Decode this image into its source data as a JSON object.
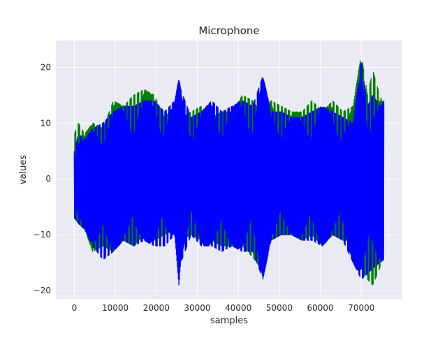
{
  "chart_data": {
    "type": "line",
    "title": "Microphone",
    "xlabel": "samples",
    "ylabel": "values",
    "xlim": [
      -4500,
      80000
    ],
    "ylim": [
      -21.5,
      24.8
    ],
    "x_ticks": [
      0,
      10000,
      20000,
      30000,
      40000,
      50000,
      60000,
      70000
    ],
    "x_tick_labels": [
      "0",
      "10000",
      "20000",
      "30000",
      "40000",
      "50000",
      "60000",
      "70000"
    ],
    "y_ticks": [
      -20,
      -10,
      0,
      10,
      20
    ],
    "y_tick_labels": [
      "−20",
      "−10",
      "0",
      "10",
      "20"
    ],
    "grid": true,
    "style": "seaborn-darkgrid",
    "background_color": "#EAEAF2",
    "series": [
      {
        "color": "#008000",
        "x": [
          0,
          1000,
          2500,
          4500,
          7000,
          9500,
          12000,
          14500,
          17000,
          19500,
          22000,
          24500,
          26000,
          28500,
          31000,
          33500,
          36000,
          38500,
          41000,
          43500,
          45500,
          48000,
          50500,
          53000,
          55500,
          58000,
          60500,
          63000,
          65500,
          68000,
          70000,
          71500,
          72800,
          74500,
          75500
        ],
        "y_max": [
          8,
          10,
          8,
          10,
          9,
          14,
          13,
          15,
          16,
          15,
          11,
          13,
          11,
          12,
          13,
          11,
          12,
          12,
          15,
          14,
          12,
          14,
          13,
          12,
          12,
          14,
          12,
          14,
          12,
          13,
          22.5,
          15,
          19.5,
          15,
          13
        ],
        "y_min": [
          -7,
          -8,
          -9,
          -13,
          -12,
          -13,
          -11,
          -12,
          -10,
          -11,
          -10,
          -9,
          -11,
          -10,
          -11,
          -11,
          -12,
          -12,
          -12,
          -14,
          -16,
          -11,
          -10,
          -10,
          -11,
          -10,
          -12,
          -10,
          -11,
          -11,
          -16,
          -18,
          -19,
          -16,
          -12
        ]
      },
      {
        "color": "#0000FF",
        "x": [
          0,
          1000,
          2500,
          4500,
          7000,
          9500,
          12000,
          14500,
          17000,
          19500,
          22000,
          24500,
          25500,
          26000,
          28500,
          31000,
          33500,
          36000,
          38500,
          41000,
          43500,
          46000,
          48000,
          50500,
          53000,
          55500,
          58000,
          60500,
          63000,
          65500,
          68000,
          70000,
          71500,
          72800,
          74500,
          75500
        ],
        "y_max": [
          5,
          8,
          7,
          9,
          10,
          12,
          13,
          13,
          14,
          14,
          12,
          14,
          18,
          16,
          11,
          12,
          14,
          12,
          13,
          14,
          13,
          18.5,
          12,
          12,
          11,
          11,
          12,
          13,
          12,
          11,
          10,
          21,
          13,
          15,
          13,
          14
        ],
        "y_min": [
          -7,
          -8,
          -9,
          -12,
          -14.5,
          -13,
          -11,
          -12,
          -11,
          -12,
          -12,
          -10,
          -19,
          -15,
          -10,
          -12,
          -12,
          -13,
          -12,
          -13,
          -13,
          -18,
          -11,
          -10,
          -10,
          -11,
          -11,
          -12,
          -10,
          -11,
          -15,
          -18,
          -17,
          -16,
          -15,
          -14.5
        ]
      }
    ]
  }
}
